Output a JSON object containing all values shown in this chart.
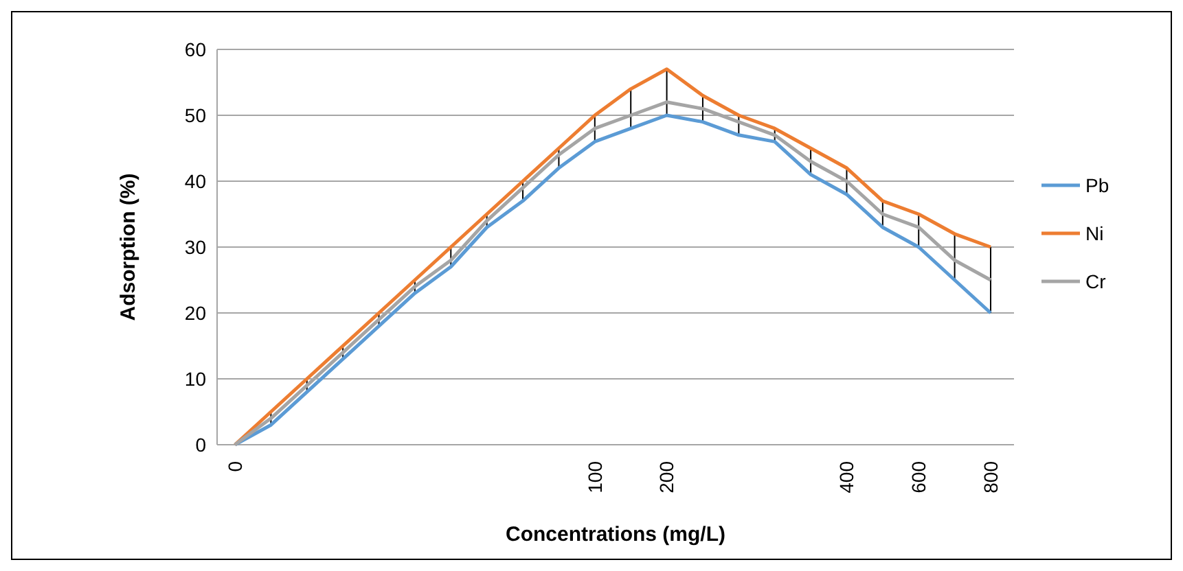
{
  "chart_data": {
    "type": "line",
    "xlabel": "Concentrations (mg/L)",
    "ylabel": "Adsorption (%)",
    "categories": [
      "0",
      null,
      null,
      null,
      null,
      null,
      null,
      null,
      null,
      null,
      "100",
      null,
      "200",
      null,
      null,
      null,
      null,
      "400",
      null,
      "600",
      null,
      "800"
    ],
    "series": [
      {
        "name": "Pb",
        "color": "#5b9bd5",
        "values": [
          0,
          3,
          8,
          13,
          18,
          23,
          27,
          33,
          37,
          42,
          46,
          48,
          50,
          49,
          47,
          46,
          41,
          38,
          33,
          30,
          25,
          20
        ]
      },
      {
        "name": "Ni",
        "color": "#ed7d31",
        "values": [
          0,
          5,
          10,
          15,
          20,
          25,
          30,
          35,
          40,
          45,
          50,
          54,
          57,
          53,
          50,
          48,
          45,
          42,
          37,
          35,
          32,
          30
        ],
        "errors": [
          null,
          [
            3,
            5
          ],
          [
            8,
            10
          ],
          [
            13,
            15
          ],
          [
            18,
            20
          ],
          [
            23,
            25
          ],
          [
            27,
            30
          ],
          [
            33,
            35
          ],
          [
            37,
            40
          ],
          [
            42,
            45
          ],
          [
            46,
            50
          ],
          [
            48,
            54
          ],
          [
            50,
            57
          ],
          [
            49,
            53
          ],
          [
            47,
            50
          ],
          [
            46,
            48
          ],
          [
            41,
            45
          ],
          [
            38,
            42
          ],
          [
            33,
            37
          ],
          [
            30,
            35
          ],
          [
            25,
            32
          ],
          [
            20,
            30
          ]
        ]
      },
      {
        "name": "Cr",
        "color": "#a5a5a5",
        "values": [
          0,
          4,
          9,
          14,
          19,
          24,
          28,
          34,
          39,
          44,
          48,
          50,
          52,
          51,
          49,
          47,
          43,
          40,
          35,
          33,
          28,
          25
        ]
      }
    ],
    "ylim": [
      0,
      60
    ],
    "yticks": [
      0,
      10,
      20,
      30,
      40,
      50,
      60
    ],
    "grid": "y",
    "legend": "right",
    "marker": "none",
    "line_style": "solid"
  }
}
